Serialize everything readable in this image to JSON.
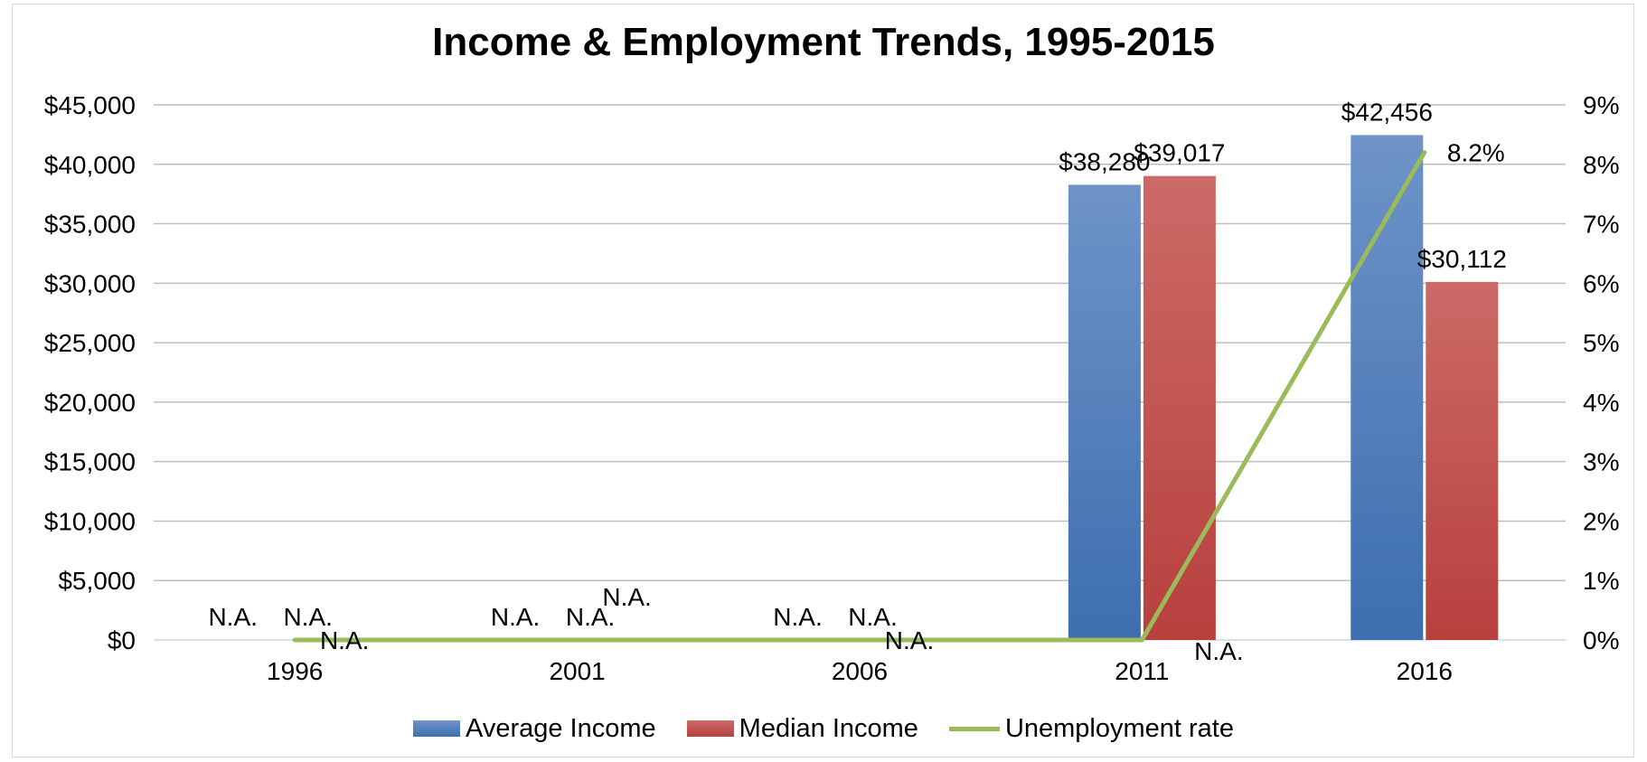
{
  "chart_data": {
    "type": "bar",
    "title": "Income & Employment Trends, 1995-2015",
    "categories": [
      "1996",
      "2001",
      "2006",
      "2011",
      "2016"
    ],
    "series": [
      {
        "name": "Average Income",
        "kind": "bar",
        "axis": "left",
        "values": [
          null,
          null,
          null,
          38280,
          42456
        ],
        "labels": [
          "N.A.",
          "N.A.",
          "N.A.",
          "$38,280",
          "$42,456"
        ],
        "color": "#4f81bd"
      },
      {
        "name": "Median Income",
        "kind": "bar",
        "axis": "left",
        "values": [
          null,
          null,
          null,
          39017,
          30112
        ],
        "labels": [
          "N.A.",
          "N.A.",
          "N.A.",
          "$39,017",
          "$30,112"
        ],
        "color": "#c0504d"
      },
      {
        "name": "Unemployment rate",
        "kind": "line",
        "axis": "right",
        "values": [
          0,
          0,
          0,
          0,
          8.2
        ],
        "labels": [
          "N.A.",
          "N.A.",
          "N.A.",
          "N.A.",
          "8.2%"
        ],
        "color": "#9bbb59"
      }
    ],
    "y_left": {
      "ylim": [
        0,
        45000
      ],
      "ticks": [
        "$0",
        "$5,000",
        "$10,000",
        "$15,000",
        "$20,000",
        "$25,000",
        "$30,000",
        "$35,000",
        "$40,000",
        "$45,000"
      ]
    },
    "y_right": {
      "ylim": [
        0,
        9
      ],
      "ticks": [
        "0%",
        "1%",
        "2%",
        "3%",
        "4%",
        "5%",
        "6%",
        "7%",
        "8%",
        "9%"
      ]
    },
    "grid": true,
    "legend": "bottom"
  }
}
